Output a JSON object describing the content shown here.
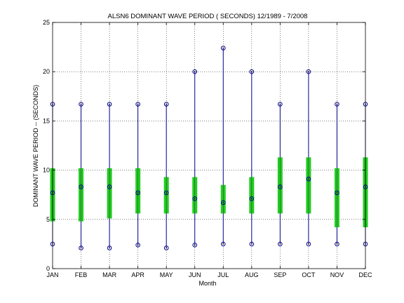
{
  "chart_data": {
    "type": "box",
    "title": "ALSN6  DOMINANT WAVE PERIOD ( SECONDS) 12/1989 - 7/2008",
    "xlabel": "Month",
    "ylabel": "DOMINANT WAVE PERIOD -- (SECONDS)",
    "ylim": [
      0,
      25
    ],
    "yticks": [
      "0",
      "5",
      "10",
      "15",
      "20",
      "25"
    ],
    "grid": true,
    "categories": [
      "JAN",
      "FEB",
      "MAR",
      "APR",
      "MAY",
      "JUN",
      "JUL",
      "AUG",
      "SEP",
      "OCT",
      "NOV",
      "DEC"
    ],
    "min": [
      2.5,
      2.1,
      2.1,
      2.4,
      2.1,
      2.4,
      2.5,
      2.5,
      2.5,
      2.5,
      2.5,
      2.5
    ],
    "q1": [
      4.8,
      4.8,
      5.1,
      5.6,
      5.6,
      5.6,
      5.6,
      5.6,
      5.6,
      5.6,
      4.2,
      4.2
    ],
    "median": [
      7.7,
      8.3,
      8.3,
      7.7,
      7.7,
      7.1,
      6.7,
      7.1,
      8.3,
      9.1,
      7.7,
      8.3
    ],
    "q3": [
      10.2,
      10.2,
      10.2,
      10.2,
      9.3,
      9.3,
      8.5,
      9.3,
      11.3,
      11.3,
      10.2,
      11.3
    ],
    "max": [
      16.7,
      16.7,
      16.7,
      16.7,
      16.7,
      20.0,
      22.4,
      20.0,
      16.7,
      20.0,
      16.7,
      16.7
    ],
    "colors": {
      "box": "#22cc22",
      "whisker": "#00008b",
      "marker": "#00008b",
      "grid": "#000000"
    }
  }
}
